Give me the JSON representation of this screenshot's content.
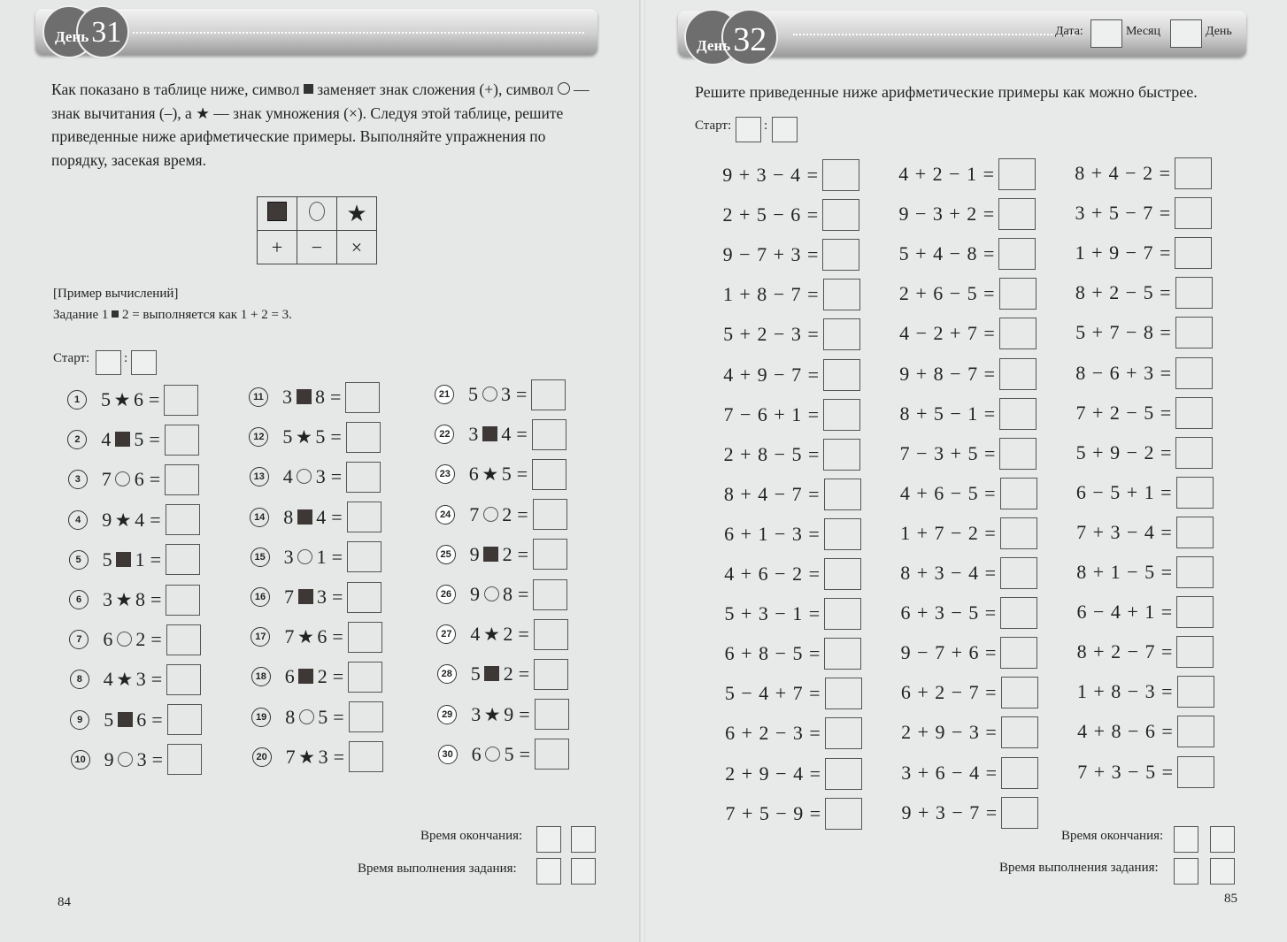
{
  "left_page": {
    "header": {
      "day_word": "День",
      "day_number": "31"
    },
    "intro_parts": [
      "Как показано в таблице ниже, символ",
      "заменяет знак сложения (+),",
      "символ",
      "— знак вычитания (–), а",
      "— знак умножения (×). Следуя этой таблице, решите приведенные ниже арифметические примеры. Выполняйте упражнения по порядку, засекая время."
    ],
    "legend": {
      "symbols": [
        "square",
        "circle",
        "star"
      ],
      "operations": [
        "+",
        "−",
        "×"
      ]
    },
    "example_heading": "[Пример вычислений]",
    "example_prefix": "Задание 1",
    "example_suffix": "2 = выполняется как 1 + 2 = 3.",
    "start_label": "Старт:",
    "colon": ":",
    "problems": [
      {
        "n": "1",
        "a": "5",
        "op": "star",
        "b": "6"
      },
      {
        "n": "2",
        "a": "4",
        "op": "square",
        "b": "5"
      },
      {
        "n": "3",
        "a": "7",
        "op": "circle",
        "b": "6"
      },
      {
        "n": "4",
        "a": "9",
        "op": "star",
        "b": "4"
      },
      {
        "n": "5",
        "a": "5",
        "op": "square",
        "b": "1"
      },
      {
        "n": "6",
        "a": "3",
        "op": "star",
        "b": "8"
      },
      {
        "n": "7",
        "a": "6",
        "op": "circle",
        "b": "2"
      },
      {
        "n": "8",
        "a": "4",
        "op": "star",
        "b": "3"
      },
      {
        "n": "9",
        "a": "5",
        "op": "square",
        "b": "6"
      },
      {
        "n": "10",
        "a": "9",
        "op": "circle",
        "b": "3"
      },
      {
        "n": "11",
        "a": "3",
        "op": "square",
        "b": "8"
      },
      {
        "n": "12",
        "a": "5",
        "op": "star",
        "b": "5"
      },
      {
        "n": "13",
        "a": "4",
        "op": "circle",
        "b": "3"
      },
      {
        "n": "14",
        "a": "8",
        "op": "square",
        "b": "4"
      },
      {
        "n": "15",
        "a": "3",
        "op": "circle",
        "b": "1"
      },
      {
        "n": "16",
        "a": "7",
        "op": "square",
        "b": "3"
      },
      {
        "n": "17",
        "a": "7",
        "op": "star",
        "b": "6"
      },
      {
        "n": "18",
        "a": "6",
        "op": "square",
        "b": "2"
      },
      {
        "n": "19",
        "a": "8",
        "op": "circle",
        "b": "5"
      },
      {
        "n": "20",
        "a": "7",
        "op": "star",
        "b": "3"
      },
      {
        "n": "21",
        "a": "5",
        "op": "circle",
        "b": "3"
      },
      {
        "n": "22",
        "a": "3",
        "op": "square",
        "b": "4"
      },
      {
        "n": "23",
        "a": "6",
        "op": "star",
        "b": "5"
      },
      {
        "n": "24",
        "a": "7",
        "op": "circle",
        "b": "2"
      },
      {
        "n": "25",
        "a": "9",
        "op": "square",
        "b": "2"
      },
      {
        "n": "26",
        "a": "9",
        "op": "circle",
        "b": "8"
      },
      {
        "n": "27",
        "a": "4",
        "op": "star",
        "b": "2"
      },
      {
        "n": "28",
        "a": "5",
        "op": "square",
        "b": "2"
      },
      {
        "n": "29",
        "a": "3",
        "op": "star",
        "b": "9"
      },
      {
        "n": "30",
        "a": "6",
        "op": "circle",
        "b": "5"
      }
    ],
    "equals": "=",
    "end_time_label": "Время окончания:",
    "duration_label": "Время выполнения задания:",
    "page_number": "84"
  },
  "right_page": {
    "header": {
      "day_word": "День",
      "day_number": "32",
      "date_label": "Дата:",
      "month_label": "Месяц",
      "day_label": "День"
    },
    "instruction": "Решите приведенные ниже арифметические примеры как можно быстрее.",
    "start_label": "Старт:",
    "colon": ":",
    "columns": [
      [
        "9 + 3 − 4 =",
        "2 + 5 − 6 =",
        "9 − 7 + 3 =",
        "1 + 8 − 7 =",
        "5 + 2 − 3 =",
        "4 + 9 − 7 =",
        "7 − 6 + 1 =",
        "2 + 8 − 5 =",
        "8 + 4 − 7 =",
        "6 + 1 − 3 =",
        "4 + 6 − 2 =",
        "5 + 3 − 1 =",
        "6 + 8 − 5 =",
        "5 − 4 + 7 =",
        "6 + 2 − 3 =",
        "2 + 9 − 4 =",
        "7 + 5 − 9 ="
      ],
      [
        "4 + 2 − 1 =",
        "9 − 3 + 2 =",
        "5 + 4 − 8 =",
        "2 + 6 − 5 =",
        "4 − 2 + 7 =",
        "9 + 8 − 7 =",
        "8 + 5 − 1 =",
        "7 − 3 + 5 =",
        "4 + 6 − 5 =",
        "1 + 7 − 2 =",
        "8 + 3 − 4 =",
        "6 + 3 − 5 =",
        "9 − 7 + 6 =",
        "6 + 2 − 7 =",
        "2 + 9 − 3 =",
        "3 + 6 − 4 =",
        "9 + 3 − 7 ="
      ],
      [
        "8 + 4 − 2 =",
        "3 + 5 − 7 =",
        "1 + 9 − 7 =",
        "8 + 2 − 5 =",
        "5 + 7 − 8 =",
        "8 − 6 + 3 =",
        "7 + 2 − 5 =",
        "5 + 9 − 2 =",
        "6 − 5 + 1 =",
        "7 + 3 − 4 =",
        "8 + 1 − 5 =",
        "6 − 4 + 1 =",
        "8 + 2 − 7 =",
        "1 + 8 − 3 =",
        "4 + 8 − 6 =",
        "7 + 3 − 5 ="
      ]
    ],
    "end_time_label": "Время окончания:",
    "duration_label": "Время выполнения задания:",
    "page_number": "85"
  }
}
